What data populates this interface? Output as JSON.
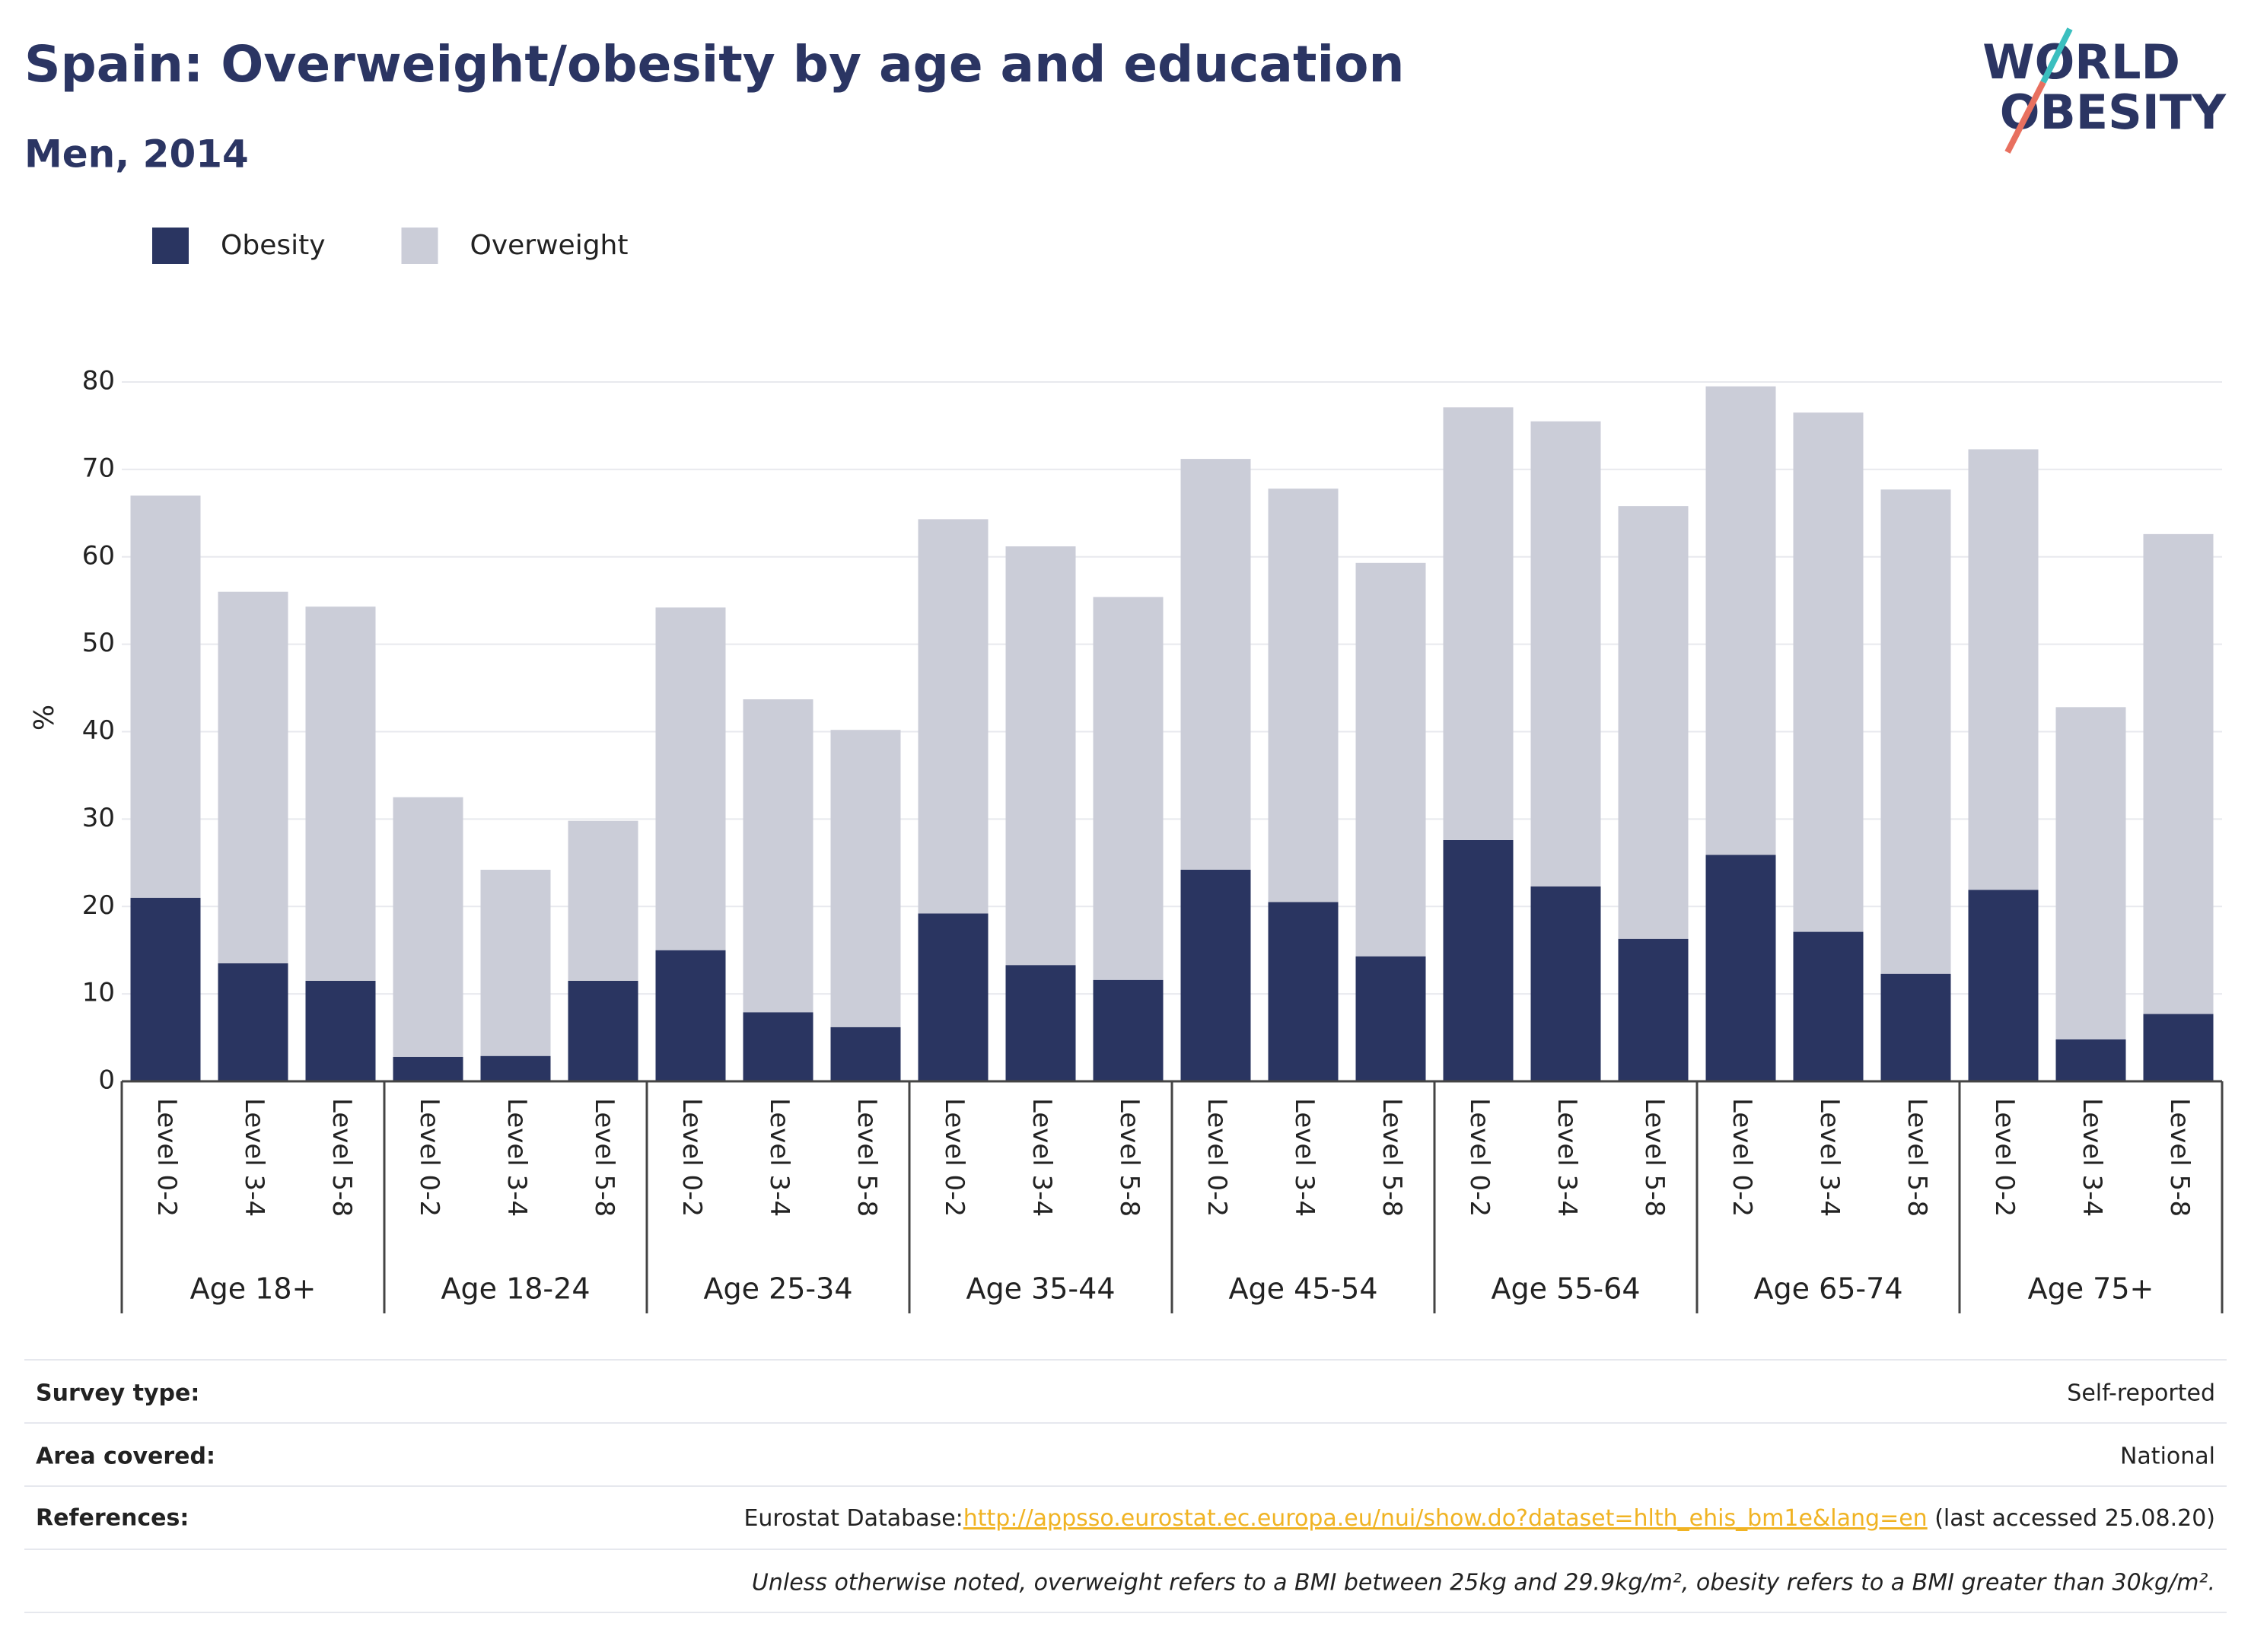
{
  "chart_data": {
    "type": "stacked_bar",
    "title": "Spain: Overweight/obesity by age and education",
    "subtitle": "Men, 2014",
    "y_label": "%",
    "groups": [
      "Age 18+",
      "Age 18-24",
      "Age 25-34",
      "Age 35-44",
      "Age 45-54",
      "Age 55-64",
      "Age 65-74",
      "Age 75+"
    ],
    "categories": [
      "Level 0-2",
      "Level 3-4",
      "Level 5-8",
      "Level 0-2",
      "Level 3-4",
      "Level 5-8",
      "Level 0-2",
      "Level 3-4",
      "Level 5-8",
      "Level 0-2",
      "Level 3-4",
      "Level 5-8",
      "Level 0-2",
      "Level 3-4",
      "Level 5-8",
      "Level 0-2",
      "Level 3-4",
      "Level 5-8",
      "Level 0-2",
      "Level 3-4",
      "Level 5-8",
      "Level 0-2",
      "Level 3-4",
      "Level 5-8"
    ],
    "series": [
      {
        "name": "Obesity",
        "color": "#2a3561",
        "values": [
          21,
          13.5,
          11.5,
          2.8,
          2.9,
          11.5,
          15,
          7.9,
          6.2,
          19.2,
          13.3,
          11.6,
          24.2,
          20.5,
          14.3,
          27.6,
          22.3,
          16.3,
          25.9,
          17.1,
          12.3,
          21.9,
          4.8,
          7.7
        ]
      },
      {
        "name": "Overweight",
        "color": "#cbcdd8",
        "values": [
          46,
          42.5,
          42.8,
          29.7,
          21.3,
          18.3,
          39.2,
          35.8,
          34,
          45.1,
          47.9,
          43.8,
          47,
          47.3,
          45,
          49.5,
          53.2,
          49.5,
          53.6,
          59.4,
          55.4,
          50.4,
          38,
          54.9
        ]
      }
    ],
    "ylim": [
      0,
      80
    ],
    "yticks": [
      0,
      10,
      20,
      30,
      40,
      50,
      60,
      70,
      80
    ],
    "grid": true,
    "legend": "top-left"
  },
  "logo": {
    "line1": "WORLD",
    "line2": "OBESITY"
  },
  "footer": {
    "survey_type": {
      "label": "Survey type:",
      "value": "Self-reported"
    },
    "area_covered": {
      "label": "Area covered:",
      "value": "National"
    },
    "references": {
      "label": "References:",
      "prefix": "Eurostat Database:",
      "link": "http://appsso.eurostat.ec.europa.eu/nui/show.do?dataset=hlth_ehis_bm1e&lang=en",
      "suffix": " (last accessed 25.08.20)"
    },
    "note": "Unless otherwise noted, overweight refers to a BMI between 25kg and 29.9kg/m², obesity refers to a BMI greater than 30kg/m²."
  }
}
